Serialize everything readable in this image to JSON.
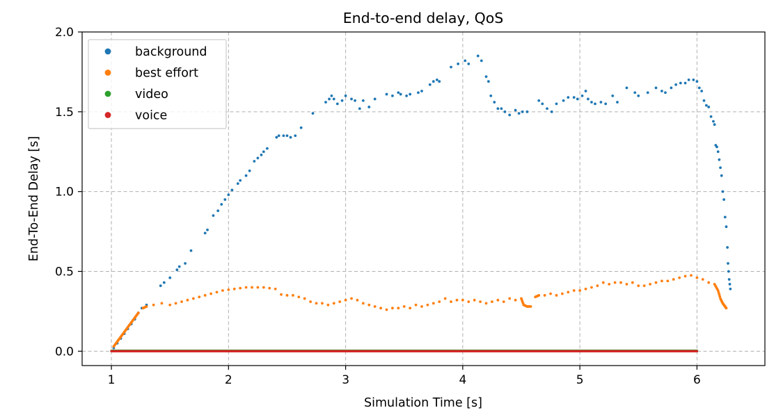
{
  "chart_data": {
    "type": "scatter",
    "title": "End-to-end delay, QoS",
    "xlabel": "Simulation Time [s]",
    "ylabel": "End-To-End Delay [s]",
    "xlim": [
      0.75,
      6.58
    ],
    "ylim": [
      -0.09,
      2.0
    ],
    "xticks": [
      1,
      2,
      3,
      4,
      5,
      6
    ],
    "yticks": [
      0.0,
      0.5,
      1.0,
      1.5,
      2.0
    ],
    "xtick_labels": [
      "1",
      "2",
      "3",
      "4",
      "5",
      "6"
    ],
    "ytick_labels": [
      "0.0",
      "0.5",
      "1.0",
      "1.5",
      "2.0"
    ],
    "grid": true,
    "legend_position": "top-left",
    "series": [
      {
        "name": "background",
        "color": "#1f77b4",
        "points": [
          [
            1.02,
            0.02
          ],
          [
            1.05,
            0.05
          ],
          [
            1.08,
            0.08
          ],
          [
            1.11,
            0.11
          ],
          [
            1.14,
            0.14
          ],
          [
            1.17,
            0.17
          ],
          [
            1.2,
            0.2
          ],
          [
            1.23,
            0.24
          ],
          [
            1.26,
            0.27
          ],
          [
            1.3,
            0.29
          ],
          [
            1.42,
            0.41
          ],
          [
            1.45,
            0.43
          ],
          [
            1.5,
            0.46
          ],
          [
            1.56,
            0.51
          ],
          [
            1.58,
            0.53
          ],
          [
            1.63,
            0.55
          ],
          [
            1.68,
            0.63
          ],
          [
            1.8,
            0.74
          ],
          [
            1.82,
            0.76
          ],
          [
            1.87,
            0.85
          ],
          [
            1.91,
            0.88
          ],
          [
            1.94,
            0.92
          ],
          [
            1.97,
            0.95
          ],
          [
            2.0,
            0.98
          ],
          [
            2.03,
            1.01
          ],
          [
            2.08,
            1.05
          ],
          [
            2.1,
            1.07
          ],
          [
            2.15,
            1.1
          ],
          [
            2.18,
            1.13
          ],
          [
            2.22,
            1.19
          ],
          [
            2.25,
            1.21
          ],
          [
            2.28,
            1.23
          ],
          [
            2.3,
            1.25
          ],
          [
            2.33,
            1.27
          ],
          [
            2.41,
            1.34
          ],
          [
            2.43,
            1.35
          ],
          [
            2.47,
            1.35
          ],
          [
            2.5,
            1.35
          ],
          [
            2.53,
            1.34
          ],
          [
            2.57,
            1.35
          ],
          [
            2.62,
            1.4
          ],
          [
            2.72,
            1.49
          ],
          [
            2.83,
            1.56
          ],
          [
            2.86,
            1.58
          ],
          [
            2.88,
            1.6
          ],
          [
            2.9,
            1.58
          ],
          [
            2.93,
            1.55
          ],
          [
            2.97,
            1.57
          ],
          [
            3.0,
            1.6
          ],
          [
            3.05,
            1.58
          ],
          [
            3.08,
            1.57
          ],
          [
            3.12,
            1.52
          ],
          [
            3.15,
            1.57
          ],
          [
            3.2,
            1.53
          ],
          [
            3.25,
            1.58
          ],
          [
            3.35,
            1.61
          ],
          [
            3.4,
            1.6
          ],
          [
            3.45,
            1.62
          ],
          [
            3.47,
            1.61
          ],
          [
            3.52,
            1.6
          ],
          [
            3.55,
            1.61
          ],
          [
            3.62,
            1.62
          ],
          [
            3.65,
            1.63
          ],
          [
            3.72,
            1.67
          ],
          [
            3.75,
            1.69
          ],
          [
            3.78,
            1.7
          ],
          [
            3.8,
            1.69
          ],
          [
            3.9,
            1.78
          ],
          [
            3.96,
            1.8
          ],
          [
            4.02,
            1.82
          ],
          [
            4.05,
            1.8
          ],
          [
            4.13,
            1.85
          ],
          [
            4.16,
            1.82
          ],
          [
            4.2,
            1.72
          ],
          [
            4.22,
            1.69
          ],
          [
            4.24,
            1.6
          ],
          [
            4.27,
            1.56
          ],
          [
            4.3,
            1.52
          ],
          [
            4.33,
            1.52
          ],
          [
            4.36,
            1.5
          ],
          [
            4.4,
            1.48
          ],
          [
            4.45,
            1.51
          ],
          [
            4.48,
            1.49
          ],
          [
            4.51,
            1.5
          ],
          [
            4.55,
            1.5
          ],
          [
            4.65,
            1.57
          ],
          [
            4.68,
            1.55
          ],
          [
            4.72,
            1.52
          ],
          [
            4.76,
            1.5
          ],
          [
            4.8,
            1.55
          ],
          [
            4.86,
            1.57
          ],
          [
            4.9,
            1.59
          ],
          [
            4.95,
            1.59
          ],
          [
            4.98,
            1.58
          ],
          [
            5.02,
            1.6
          ],
          [
            5.05,
            1.63
          ],
          [
            5.07,
            1.58
          ],
          [
            5.1,
            1.56
          ],
          [
            5.13,
            1.55
          ],
          [
            5.18,
            1.56
          ],
          [
            5.22,
            1.55
          ],
          [
            5.28,
            1.6
          ],
          [
            5.32,
            1.56
          ],
          [
            5.4,
            1.65
          ],
          [
            5.47,
            1.62
          ],
          [
            5.5,
            1.6
          ],
          [
            5.58,
            1.62
          ],
          [
            5.65,
            1.65
          ],
          [
            5.7,
            1.63
          ],
          [
            5.73,
            1.62
          ],
          [
            5.78,
            1.65
          ],
          [
            5.82,
            1.67
          ],
          [
            5.86,
            1.68
          ],
          [
            5.9,
            1.68
          ],
          [
            5.93,
            1.7
          ],
          [
            5.97,
            1.7
          ],
          [
            6.0,
            1.69
          ],
          [
            6.02,
            1.65
          ],
          [
            6.04,
            1.63
          ],
          [
            6.06,
            1.57
          ],
          [
            6.08,
            1.54
          ],
          [
            6.1,
            1.53
          ],
          [
            6.12,
            1.47
          ],
          [
            6.14,
            1.44
          ],
          [
            6.15,
            1.42
          ],
          [
            6.16,
            1.29
          ],
          [
            6.17,
            1.28
          ],
          [
            6.18,
            1.25
          ],
          [
            6.19,
            1.2
          ],
          [
            6.2,
            1.15
          ],
          [
            6.21,
            1.1
          ],
          [
            6.22,
            1.0
          ],
          [
            6.23,
            0.95
          ],
          [
            6.24,
            0.84
          ],
          [
            6.25,
            0.78
          ],
          [
            6.26,
            0.65
          ],
          [
            6.265,
            0.55
          ],
          [
            6.27,
            0.5
          ],
          [
            6.275,
            0.45
          ],
          [
            6.28,
            0.42
          ],
          [
            6.285,
            0.39
          ]
        ]
      },
      {
        "name": "best effort",
        "color": "#ff7f0e",
        "points": [
          [
            1.02,
            0.03
          ],
          [
            1.05,
            0.06
          ],
          [
            1.08,
            0.09
          ],
          [
            1.11,
            0.12
          ],
          [
            1.14,
            0.15
          ],
          [
            1.17,
            0.18
          ],
          [
            1.2,
            0.21
          ],
          [
            1.23,
            0.24
          ],
          [
            1.27,
            0.27
          ],
          [
            1.3,
            0.28
          ],
          [
            1.36,
            0.29
          ],
          [
            1.43,
            0.3
          ],
          [
            1.5,
            0.29
          ],
          [
            1.55,
            0.3
          ],
          [
            1.6,
            0.31
          ],
          [
            1.65,
            0.32
          ],
          [
            1.7,
            0.33
          ],
          [
            1.75,
            0.34
          ],
          [
            1.8,
            0.35
          ],
          [
            1.85,
            0.36
          ],
          [
            1.9,
            0.37
          ],
          [
            1.95,
            0.38
          ],
          [
            2.0,
            0.385
          ],
          [
            2.05,
            0.39
          ],
          [
            2.1,
            0.395
          ],
          [
            2.15,
            0.4
          ],
          [
            2.2,
            0.4
          ],
          [
            2.25,
            0.4
          ],
          [
            2.3,
            0.4
          ],
          [
            2.35,
            0.395
          ],
          [
            2.4,
            0.39
          ],
          [
            2.45,
            0.355
          ],
          [
            2.5,
            0.35
          ],
          [
            2.55,
            0.35
          ],
          [
            2.6,
            0.34
          ],
          [
            2.65,
            0.33
          ],
          [
            2.7,
            0.31
          ],
          [
            2.75,
            0.3
          ],
          [
            2.8,
            0.3
          ],
          [
            2.85,
            0.29
          ],
          [
            2.9,
            0.3
          ],
          [
            2.95,
            0.31
          ],
          [
            3.0,
            0.32
          ],
          [
            3.05,
            0.33
          ],
          [
            3.1,
            0.32
          ],
          [
            3.15,
            0.3
          ],
          [
            3.2,
            0.29
          ],
          [
            3.25,
            0.28
          ],
          [
            3.3,
            0.27
          ],
          [
            3.35,
            0.26
          ],
          [
            3.4,
            0.27
          ],
          [
            3.45,
            0.27
          ],
          [
            3.5,
            0.28
          ],
          [
            3.55,
            0.27
          ],
          [
            3.6,
            0.29
          ],
          [
            3.65,
            0.28
          ],
          [
            3.7,
            0.29
          ],
          [
            3.75,
            0.3
          ],
          [
            3.8,
            0.31
          ],
          [
            3.85,
            0.33
          ],
          [
            3.9,
            0.31
          ],
          [
            3.95,
            0.32
          ],
          [
            4.0,
            0.32
          ],
          [
            4.05,
            0.31
          ],
          [
            4.1,
            0.32
          ],
          [
            4.15,
            0.31
          ],
          [
            4.2,
            0.3
          ],
          [
            4.25,
            0.31
          ],
          [
            4.3,
            0.32
          ],
          [
            4.35,
            0.31
          ],
          [
            4.4,
            0.33
          ],
          [
            4.45,
            0.32
          ],
          [
            4.5,
            0.33
          ],
          [
            4.52,
            0.29
          ],
          [
            4.55,
            0.28
          ],
          [
            4.58,
            0.28
          ],
          [
            4.62,
            0.34
          ],
          [
            4.65,
            0.35
          ],
          [
            4.7,
            0.35
          ],
          [
            4.75,
            0.36
          ],
          [
            4.8,
            0.35
          ],
          [
            4.85,
            0.36
          ],
          [
            4.9,
            0.37
          ],
          [
            4.95,
            0.38
          ],
          [
            5.0,
            0.38
          ],
          [
            5.05,
            0.39
          ],
          [
            5.1,
            0.4
          ],
          [
            5.15,
            0.41
          ],
          [
            5.2,
            0.43
          ],
          [
            5.25,
            0.42
          ],
          [
            5.3,
            0.43
          ],
          [
            5.35,
            0.43
          ],
          [
            5.4,
            0.42
          ],
          [
            5.45,
            0.43
          ],
          [
            5.5,
            0.41
          ],
          [
            5.55,
            0.41
          ],
          [
            5.6,
            0.42
          ],
          [
            5.65,
            0.43
          ],
          [
            5.7,
            0.44
          ],
          [
            5.75,
            0.44
          ],
          [
            5.8,
            0.45
          ],
          [
            5.85,
            0.46
          ],
          [
            5.9,
            0.47
          ],
          [
            5.95,
            0.475
          ],
          [
            6.0,
            0.46
          ],
          [
            6.05,
            0.45
          ],
          [
            6.1,
            0.43
          ],
          [
            6.15,
            0.42
          ],
          [
            6.18,
            0.38
          ],
          [
            6.2,
            0.33
          ],
          [
            6.22,
            0.3
          ],
          [
            6.24,
            0.28
          ],
          [
            6.25,
            0.27
          ]
        ]
      },
      {
        "name": "video",
        "color": "#2ca02c",
        "dense": true,
        "y": 0.003,
        "x_range": [
          1.0,
          6.0
        ]
      },
      {
        "name": "voice",
        "color": "#d62728",
        "dense": true,
        "y": 0.0,
        "x_range": [
          1.0,
          6.0
        ]
      }
    ]
  }
}
